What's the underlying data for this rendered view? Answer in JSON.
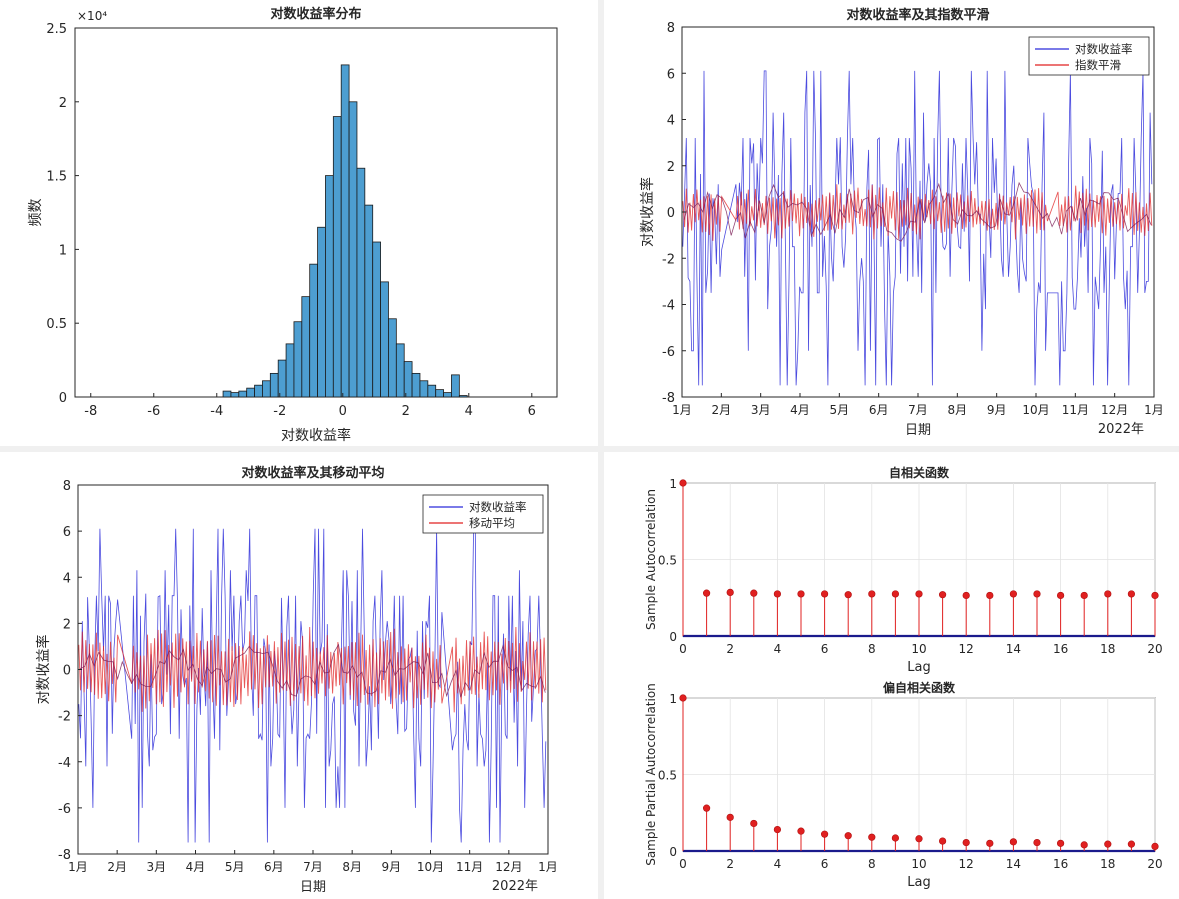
{
  "chart_data": [
    {
      "id": "hist",
      "type": "bar",
      "title": "对数收益率分布",
      "xlabel": "对数收益率",
      "ylabel": "频数",
      "y_exponent": "×10⁴",
      "xlim": [
        -8.5,
        6.8
      ],
      "ylim": [
        0,
        2.5
      ],
      "x_ticks": [
        -8,
        -6,
        -4,
        -2,
        0,
        2,
        4,
        6
      ],
      "x_tick_labels": [
        "-8",
        "-6",
        "-4",
        "-2",
        "0",
        "2",
        "4",
        "6"
      ],
      "y_ticks": [
        0,
        0.5,
        1,
        1.5,
        2,
        2.5
      ],
      "y_tick_labels": [
        "0",
        "0.5",
        "1",
        "1.5",
        "2",
        "2.5"
      ],
      "bar_color": "#4d9ed1",
      "bin_start": -3.8,
      "bin_width": 0.25,
      "values": [
        0.04,
        0.03,
        0.04,
        0.06,
        0.08,
        0.11,
        0.16,
        0.25,
        0.36,
        0.51,
        0.68,
        0.9,
        1.15,
        1.5,
        1.9,
        2.25,
        2.0,
        1.55,
        1.3,
        1.05,
        0.78,
        0.53,
        0.36,
        0.24,
        0.16,
        0.11,
        0.08,
        0.05,
        0.03,
        0.15,
        0.01
      ]
    },
    {
      "id": "exp",
      "type": "line",
      "title": "对数收益率及其指数平滑",
      "xlabel": "日期",
      "ylabel": "对数收益率",
      "year_label": "2022年",
      "xlim": [
        0,
        12
      ],
      "ylim": [
        -8,
        8
      ],
      "y_ticks": [
        -8,
        -6,
        -4,
        -2,
        0,
        2,
        4,
        6,
        8
      ],
      "y_tick_labels": [
        "-8",
        "-6",
        "-4",
        "-2",
        "0",
        "2",
        "4",
        "6",
        "8"
      ],
      "x_tick_labels": [
        "1月",
        "2月",
        "3月",
        "4月",
        "5月",
        "6月",
        "7月",
        "8月",
        "9月",
        "10月",
        "11月",
        "12月",
        "1月"
      ],
      "legend": [
        "对数收益率",
        "指数平滑"
      ],
      "series_colors": [
        "#2b2bd9",
        "#e02020"
      ],
      "gaps": [
        [
          1.05,
          1.35
        ],
        [
          9.3,
          9.55
        ]
      ],
      "band_half_width": 1.0,
      "seed": 7
    },
    {
      "id": "ma",
      "type": "line",
      "title": "对数收益率及其移动平均",
      "xlabel": "日期",
      "ylabel": "对数收益率",
      "year_label": "2022年",
      "xlim": [
        0,
        12
      ],
      "ylim": [
        -8,
        8
      ],
      "y_ticks": [
        -8,
        -6,
        -4,
        -2,
        0,
        2,
        4,
        6,
        8
      ],
      "y_tick_labels": [
        "-8",
        "-6",
        "-4",
        "-2",
        "0",
        "2",
        "4",
        "6",
        "8"
      ],
      "x_tick_labels": [
        "1月",
        "2月",
        "3月",
        "4月",
        "5月",
        "6月",
        "7月",
        "8月",
        "9月",
        "10月",
        "11月",
        "12月",
        "1月"
      ],
      "legend": [
        "对数收益率",
        "移动平均"
      ],
      "series_colors": [
        "#2b2bd9",
        "#e02020"
      ],
      "gaps": [
        [
          1.05,
          1.35
        ],
        [
          9.3,
          9.55
        ]
      ],
      "band_half_width": 1.6,
      "seed": 13
    },
    {
      "id": "acf",
      "type": "stem",
      "title": "自相关函数",
      "xlabel": "Lag",
      "ylabel": "Sample Autocorrelation",
      "xlim": [
        0,
        20
      ],
      "ylim": [
        0,
        1
      ],
      "x_ticks": [
        0,
        2,
        4,
        6,
        8,
        10,
        12,
        14,
        16,
        18,
        20
      ],
      "y_ticks": [
        0,
        0.5,
        1
      ],
      "y_tick_labels": [
        "0",
        "0.5",
        "1"
      ],
      "lags": [
        0,
        1,
        2,
        3,
        4,
        5,
        6,
        7,
        8,
        9,
        10,
        11,
        12,
        13,
        14,
        15,
        16,
        17,
        18,
        19,
        20
      ],
      "values": [
        1.0,
        0.28,
        0.285,
        0.28,
        0.275,
        0.275,
        0.275,
        0.27,
        0.275,
        0.275,
        0.275,
        0.27,
        0.265,
        0.265,
        0.275,
        0.275,
        0.265,
        0.265,
        0.275,
        0.275,
        0.265
      ],
      "stem_color": "#e02020"
    },
    {
      "id": "pacf",
      "type": "stem",
      "title": "偏自相关函数",
      "xlabel": "Lag",
      "ylabel": "Sample Partial Autocorrelation",
      "xlim": [
        0,
        20
      ],
      "ylim": [
        0,
        1
      ],
      "x_ticks": [
        0,
        2,
        4,
        6,
        8,
        10,
        12,
        14,
        16,
        18,
        20
      ],
      "y_ticks": [
        0,
        0.5,
        1
      ],
      "y_tick_labels": [
        "0",
        "0.5",
        "1"
      ],
      "lags": [
        0,
        1,
        2,
        3,
        4,
        5,
        6,
        7,
        8,
        9,
        10,
        11,
        12,
        13,
        14,
        15,
        16,
        17,
        18,
        19,
        20
      ],
      "values": [
        1.0,
        0.28,
        0.22,
        0.18,
        0.14,
        0.13,
        0.11,
        0.1,
        0.09,
        0.085,
        0.08,
        0.065,
        0.055,
        0.05,
        0.06,
        0.055,
        0.05,
        0.04,
        0.045,
        0.045,
        0.03
      ],
      "stem_color": "#e02020"
    }
  ]
}
